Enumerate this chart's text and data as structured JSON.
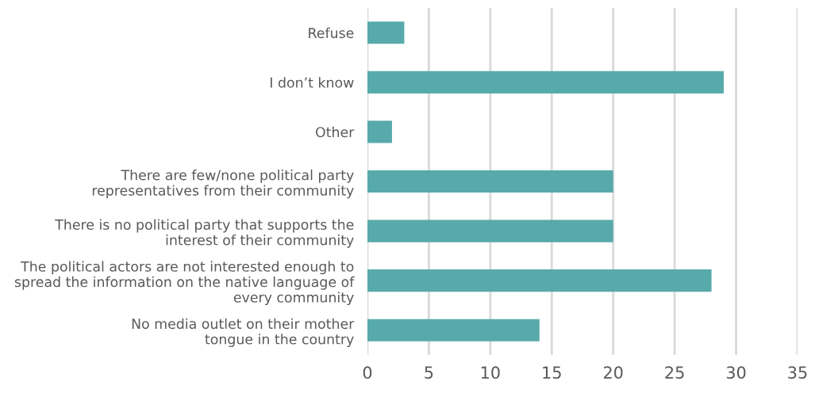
{
  "chart_data": {
    "type": "bar",
    "orientation": "horizontal",
    "categories": [
      "Refuse",
      "I don’t know",
      "Other",
      "There are few/none political party\nrepresentatives from their community",
      "There is no political party that supports the\ninterest of their community",
      "The political actors are not interested enough to\nspread the information on the native language of\nevery community",
      "No media outlet on their mother\ntongue in the country"
    ],
    "values": [
      3,
      29,
      2,
      20,
      20,
      28,
      14
    ],
    "color": "#58aaaa",
    "xlim": [
      0,
      35
    ],
    "xticks": [
      0,
      5,
      10,
      15,
      20,
      25,
      30,
      35
    ],
    "grid": "x"
  }
}
